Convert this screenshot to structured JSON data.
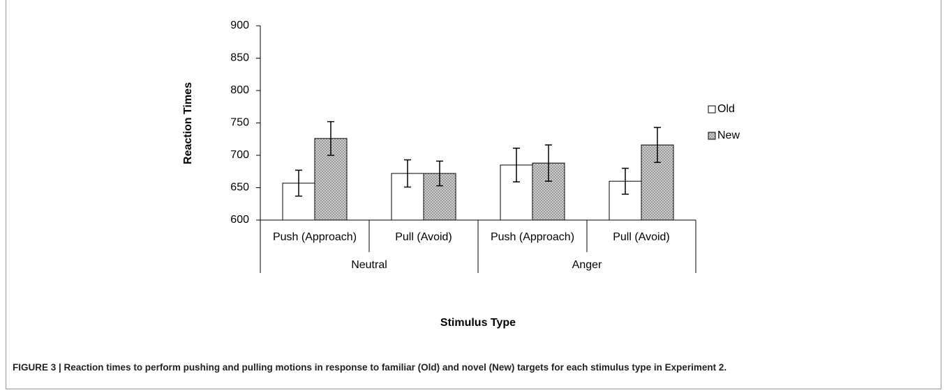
{
  "chart_data": {
    "type": "bar",
    "y_label": "Reaction Times",
    "x_label": "Stimulus Type",
    "categories": [
      "Push (Approach)",
      "Pull (Avoid)",
      "Push (Approach)",
      "Pull (Avoid)"
    ],
    "group_labels": [
      "Neutral",
      "Anger"
    ],
    "series": [
      {
        "name": "Old",
        "color": "#ffffff",
        "values": [
          657,
          672,
          685,
          660
        ],
        "errors": [
          20,
          21,
          26,
          20
        ]
      },
      {
        "name": "New",
        "color": "#9a9a9a",
        "pattern": "hatch",
        "values": [
          726,
          672,
          688,
          716
        ],
        "errors": [
          26,
          19,
          28,
          27
        ]
      }
    ],
    "ylim": [
      600,
      900
    ],
    "yticks": [
      600,
      650,
      700,
      750,
      800,
      850,
      900
    ],
    "grid": false,
    "legend": "right"
  },
  "caption": "FIGURE 3 | Reaction times to perform pushing and pulling motions in response to familiar (Old) and novel (New) targets for each stimulus type in Experiment 2."
}
